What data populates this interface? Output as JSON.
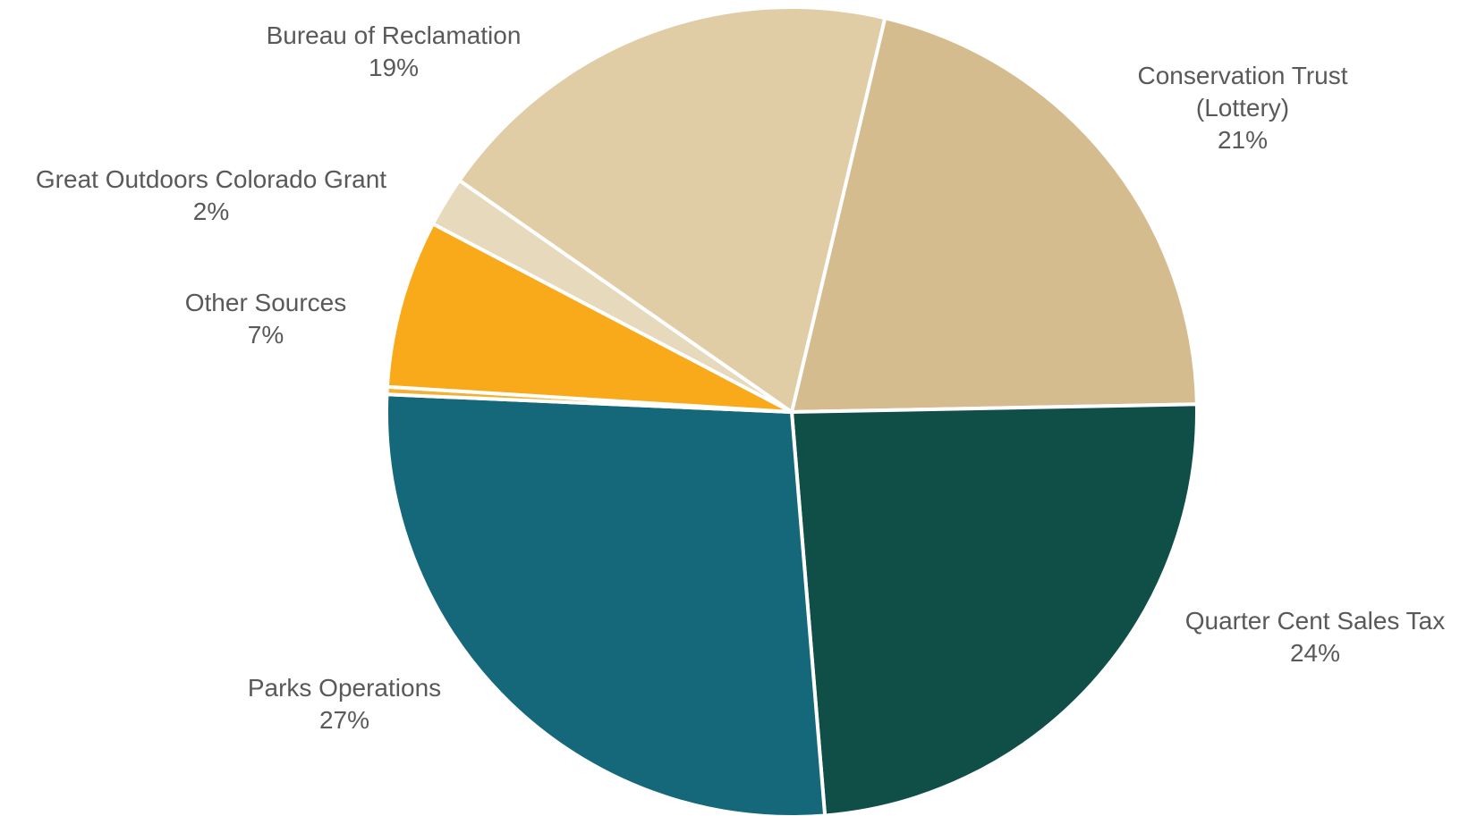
{
  "chart_data": {
    "type": "pie",
    "title": "",
    "slices": [
      {
        "label": "Conservation Trust",
        "label_line2": "(Lottery)",
        "value": 21,
        "percent_label": "21%",
        "color": "#D5BC8E"
      },
      {
        "label": "Quarter Cent Sales Tax",
        "value": 24,
        "percent_label": "24%",
        "color": "#104F47"
      },
      {
        "label": "Parks Operations",
        "value": 27,
        "percent_label": "27%",
        "color": "#15677A"
      },
      {
        "label": "",
        "value": 0.3,
        "percent_label": "",
        "color": "#F2B134"
      },
      {
        "label": "Other Sources",
        "value": 6.7,
        "percent_label": "7%",
        "color": "#F8AA1B"
      },
      {
        "label": "Great Outdoors Colorado Grant",
        "value": 2,
        "percent_label": "2%",
        "color": "#E6D9BC"
      },
      {
        "label": "Bureau of Reclamation",
        "value": 19,
        "percent_label": "19%",
        "color": "#E0CDA6"
      }
    ]
  }
}
